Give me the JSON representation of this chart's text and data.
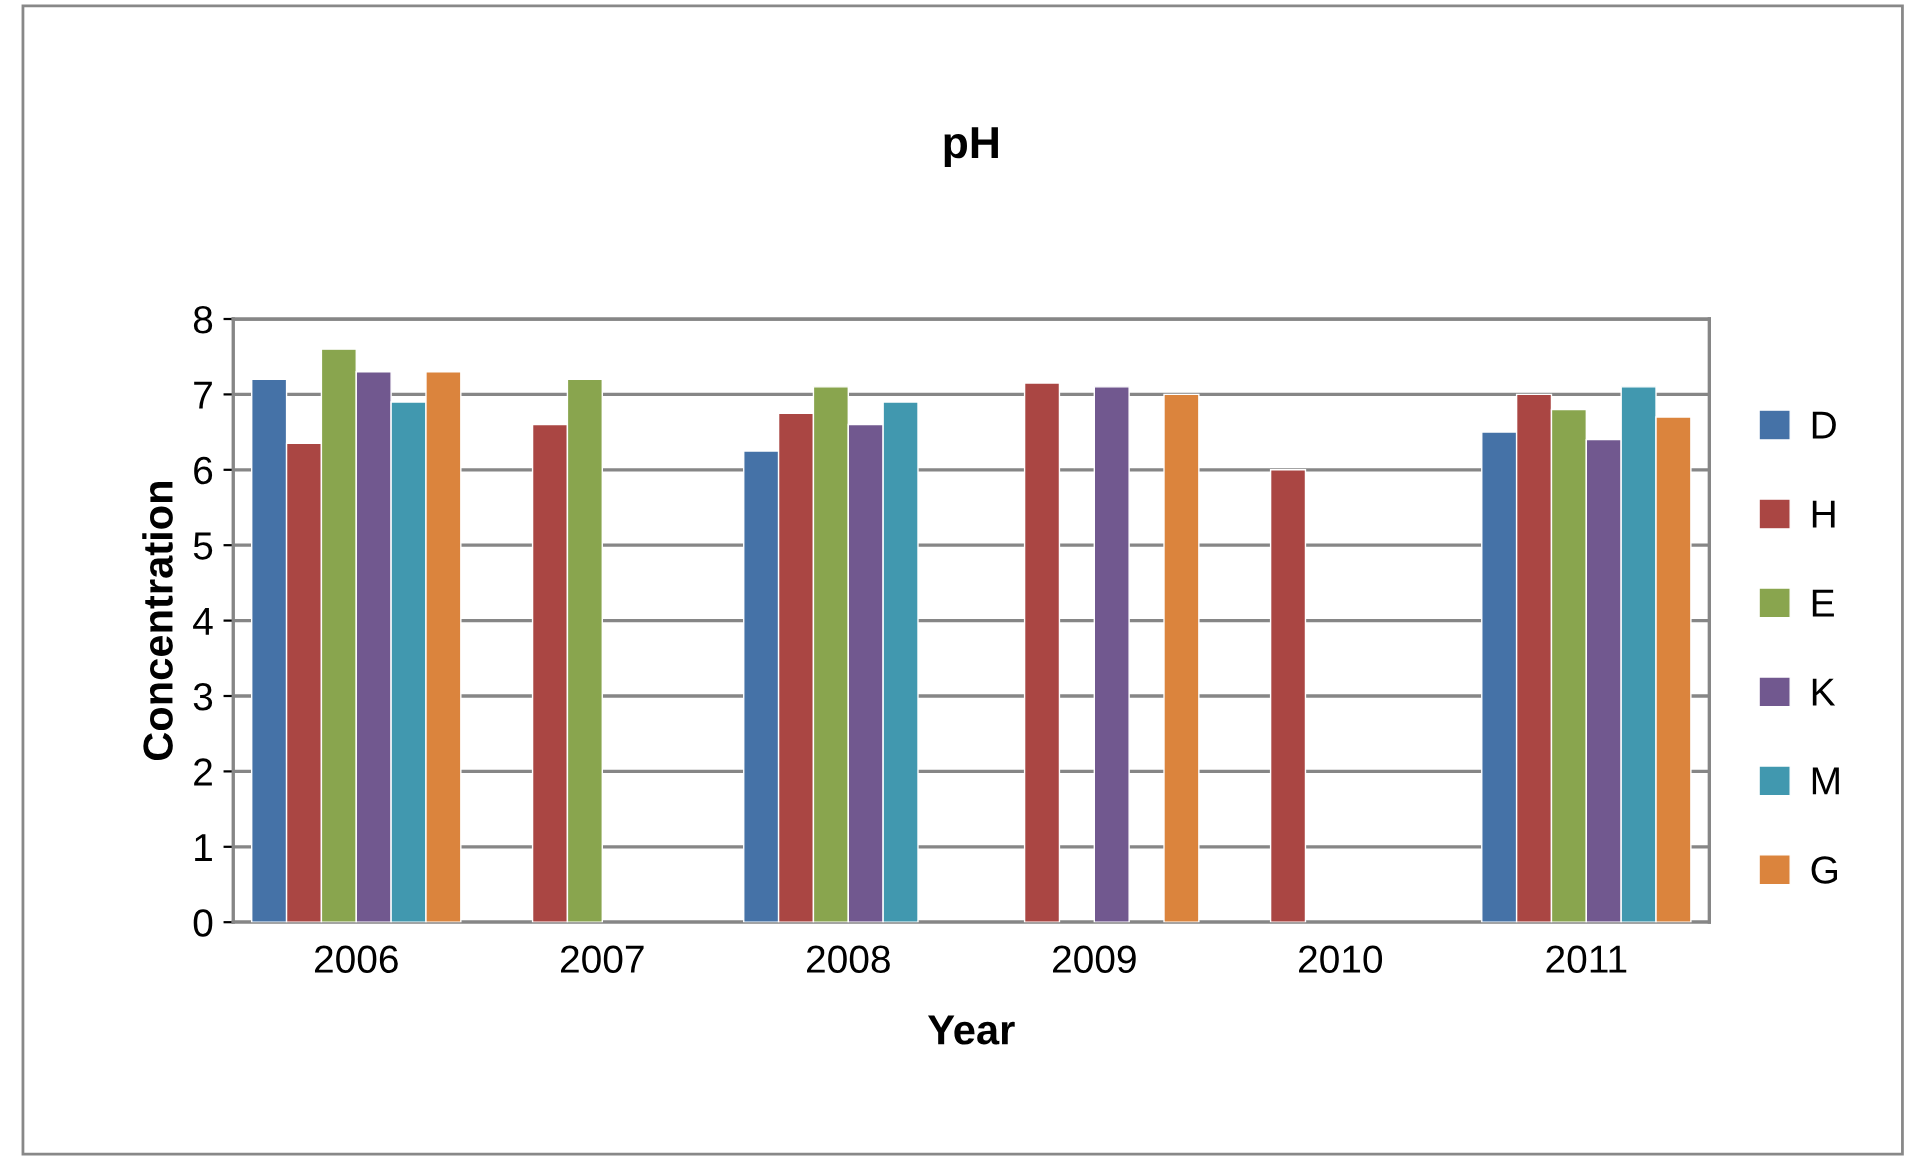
{
  "chart_data": {
    "type": "bar",
    "title": "pH",
    "xlabel": "Year",
    "ylabel": "Concentration",
    "categories": [
      "2006",
      "2007",
      "2008",
      "2009",
      "2010",
      "2011"
    ],
    "series": [
      {
        "name": "D",
        "color": "#4572a7",
        "values": [
          7.2,
          null,
          6.25,
          null,
          null,
          6.5
        ]
      },
      {
        "name": "H",
        "color": "#aa4643",
        "values": [
          6.35,
          6.6,
          6.75,
          7.15,
          6.0,
          7.0
        ]
      },
      {
        "name": "E",
        "color": "#89a54e",
        "values": [
          7.6,
          7.2,
          7.1,
          null,
          null,
          6.8
        ]
      },
      {
        "name": "K",
        "color": "#71588f",
        "values": [
          7.3,
          null,
          6.6,
          7.1,
          null,
          6.4
        ]
      },
      {
        "name": "M",
        "color": "#4198af",
        "values": [
          6.9,
          null,
          6.9,
          null,
          null,
          7.1
        ]
      },
      {
        "name": "G",
        "color": "#db843d",
        "values": [
          7.3,
          null,
          null,
          7.0,
          null,
          6.7
        ]
      }
    ],
    "ylim": [
      0,
      8
    ],
    "yticks": [
      0,
      1,
      2,
      3,
      4,
      5,
      6,
      7,
      8
    ],
    "grid": "y",
    "legend": "right"
  }
}
